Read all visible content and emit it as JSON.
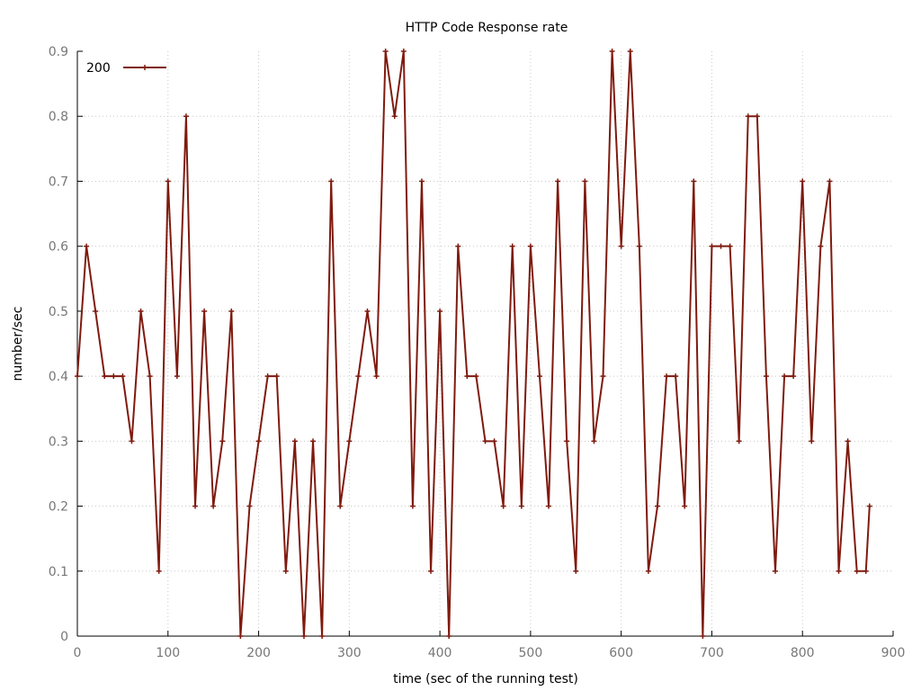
{
  "chart_data": {
    "type": "line",
    "title": "HTTP Code Response rate",
    "xlabel": "time (sec of the running test)",
    "ylabel": "number/sec",
    "xlim": [
      0,
      900
    ],
    "ylim": [
      0,
      0.9
    ],
    "xticks": [
      0,
      100,
      200,
      300,
      400,
      500,
      600,
      700,
      800,
      900
    ],
    "yticks": [
      0,
      0.1,
      0.2,
      0.3,
      0.4,
      0.5,
      0.6,
      0.7,
      0.8,
      0.9
    ],
    "grid": true,
    "legend_position": "top-left",
    "series": [
      {
        "name": "200",
        "color": "#7f1a0e",
        "marker": "plus",
        "x": [
          0,
          10,
          20,
          30,
          40,
          50,
          60,
          70,
          80,
          90,
          100,
          110,
          120,
          130,
          140,
          150,
          160,
          170,
          180,
          190,
          200,
          210,
          220,
          230,
          240,
          250,
          260,
          270,
          280,
          290,
          300,
          310,
          320,
          330,
          340,
          350,
          360,
          370,
          380,
          390,
          400,
          410,
          420,
          430,
          440,
          450,
          460,
          470,
          480,
          490,
          500,
          510,
          520,
          530,
          540,
          550,
          560,
          570,
          580,
          590,
          600,
          610,
          620,
          630,
          640,
          650,
          660,
          670,
          680,
          690,
          700,
          710,
          720,
          730,
          740,
          750,
          760,
          770,
          780,
          790,
          800,
          810,
          820,
          830,
          840,
          850,
          860,
          870,
          874
        ],
        "y": [
          0.4,
          0.6,
          0.5,
          0.4,
          0.4,
          0.4,
          0.3,
          0.5,
          0.4,
          0.1,
          0.7,
          0.4,
          0.8,
          0.2,
          0.5,
          0.2,
          0.3,
          0.5,
          0.0,
          0.2,
          0.3,
          0.4,
          0.4,
          0.1,
          0.3,
          0.0,
          0.3,
          0.0,
          0.7,
          0.2,
          0.3,
          0.4,
          0.5,
          0.4,
          0.9,
          0.8,
          0.9,
          0.2,
          0.7,
          0.1,
          0.5,
          0.0,
          0.6,
          0.4,
          0.4,
          0.3,
          0.3,
          0.2,
          0.6,
          0.2,
          0.6,
          0.4,
          0.2,
          0.7,
          0.3,
          0.1,
          0.7,
          0.3,
          0.4,
          0.9,
          0.6,
          0.9,
          0.6,
          0.1,
          0.2,
          0.4,
          0.4,
          0.2,
          0.7,
          0.0,
          0.6,
          0.6,
          0.6,
          0.3,
          0.8,
          0.8,
          0.4,
          0.1,
          0.4,
          0.4,
          0.7,
          0.3,
          0.6,
          0.7,
          0.1,
          0.3,
          0.1,
          0.1,
          0.2
        ]
      }
    ]
  }
}
